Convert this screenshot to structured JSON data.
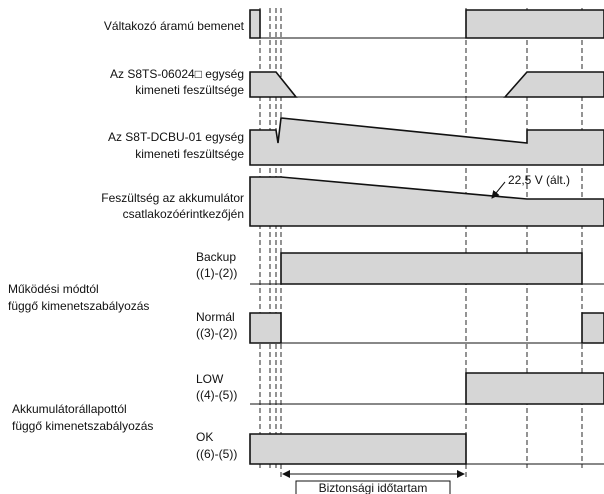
{
  "signals": [
    {
      "label": [
        "Váltakozó áramú bemenet"
      ]
    },
    {
      "label": [
        "Az S8TS-06024□ egység",
        "kimeneti feszültsége"
      ]
    },
    {
      "label": [
        "Az S8T-DCBU-01 egység",
        "kimeneti feszültsége"
      ]
    },
    {
      "label": [
        "Feszültség az akkumulátor",
        "csatlakozóérintkezőjén"
      ]
    },
    {
      "label": [
        "Backup",
        "((1)-(2))"
      ]
    },
    {
      "label": [
        "Normál",
        "((3)-(2))"
      ]
    },
    {
      "label": [
        "LOW",
        "((4)-(5))"
      ]
    },
    {
      "label": [
        "OK",
        "((6)-(5))"
      ]
    }
  ],
  "groups": [
    {
      "label": [
        "Működési módtól",
        "függő kimenetszabályozás"
      ]
    },
    {
      "label": [
        "Akkumulátorállapottól",
        "függő kimenetszabályozás"
      ]
    }
  ],
  "annotation": "22,5 V (ált.)",
  "duration_label": "Biztonsági időtartam"
}
